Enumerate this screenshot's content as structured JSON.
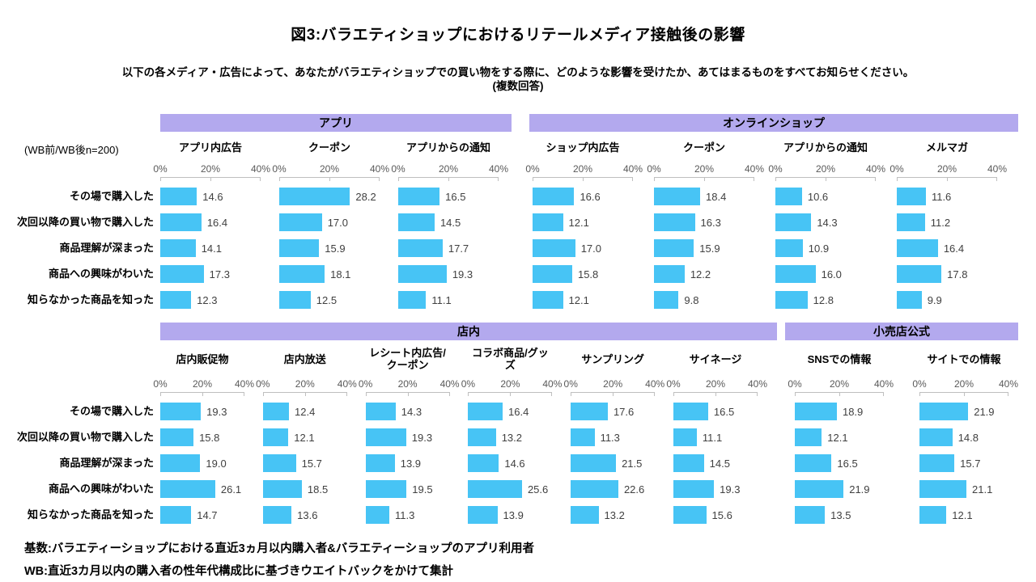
{
  "title": "図3:バラエティショップにおけるリテールメディア接触後の影響",
  "subtitle_line1": "以下の各メディア・広告によって、あなたがバラエティショップでの買い物をする際に、どのような影響を受けたか、あてはまるものをすべてお知らせください。",
  "subtitle_line2": "(複数回答)",
  "sample_note": "(WB前/WB後n=200)",
  "footnote_line1": "基数:バラエティーショップにおける直近3ヵ月以内購入者&バラエティーショップのアプリ利用者",
  "footnote_line2": "WB:直近3カ月以内の購入者の性年代構成比に基づきウエイトバックをかけて集計",
  "colors": {
    "bar": "#47C4F5",
    "band": "#B3A9EE",
    "axis": "#BFBFBF"
  },
  "chart_data": {
    "type": "bar",
    "orientation": "horizontal",
    "xlim": [
      0,
      40
    ],
    "axis_ticks": [
      "0%",
      "20%",
      "40%"
    ],
    "grid": false,
    "legend": "none",
    "categories": [
      "その場で購入した",
      "次回以降の買い物で購入した",
      "商品理解が深まった",
      "商品への興味がわいた",
      "知らなかった商品を知った"
    ],
    "sections": [
      {
        "groups": [
          {
            "band": "アプリ",
            "charts": [
              {
                "label": "アプリ内広告",
                "values": [
                  14.6,
                  16.4,
                  14.1,
                  17.3,
                  12.3
                ]
              },
              {
                "label": "クーポン",
                "values": [
                  28.2,
                  17.0,
                  15.9,
                  18.1,
                  12.5
                ]
              },
              {
                "label": "アプリからの通知",
                "values": [
                  16.5,
                  14.5,
                  17.7,
                  19.3,
                  11.1
                ]
              }
            ]
          },
          {
            "band": "オンラインショップ",
            "charts": [
              {
                "label": "ショップ内広告",
                "values": [
                  16.6,
                  12.1,
                  17.0,
                  15.8,
                  12.1
                ]
              },
              {
                "label": "クーポン",
                "values": [
                  18.4,
                  16.3,
                  15.9,
                  12.2,
                  9.8
                ]
              },
              {
                "label": "アプリからの通知",
                "values": [
                  10.6,
                  14.3,
                  10.9,
                  16.0,
                  12.8
                ]
              },
              {
                "label": "メルマガ",
                "values": [
                  11.6,
                  11.2,
                  16.4,
                  17.8,
                  9.9
                ]
              }
            ]
          }
        ]
      },
      {
        "groups": [
          {
            "band": "店内",
            "charts": [
              {
                "label": "店内販促物",
                "values": [
                  19.3,
                  15.8,
                  19.0,
                  26.1,
                  14.7
                ]
              },
              {
                "label": "店内放送",
                "values": [
                  12.4,
                  12.1,
                  15.7,
                  18.5,
                  13.6
                ]
              },
              {
                "label": "レシート内広告/クーポン",
                "values": [
                  14.3,
                  19.3,
                  13.9,
                  19.5,
                  11.3
                ]
              },
              {
                "label": "コラボ商品/グッズ",
                "values": [
                  16.4,
                  13.2,
                  14.6,
                  25.6,
                  13.9
                ]
              },
              {
                "label": "サンプリング",
                "values": [
                  17.6,
                  11.3,
                  21.5,
                  22.6,
                  13.2
                ]
              },
              {
                "label": "サイネージ",
                "values": [
                  16.5,
                  11.1,
                  14.5,
                  19.3,
                  15.6
                ]
              }
            ]
          },
          {
            "band": "小売店公式",
            "charts": [
              {
                "label": "SNSでの情報",
                "values": [
                  18.9,
                  12.1,
                  16.5,
                  21.9,
                  13.5
                ]
              },
              {
                "label": "サイトでの情報",
                "values": [
                  21.9,
                  14.8,
                  15.7,
                  21.1,
                  12.1
                ]
              }
            ]
          }
        ]
      }
    ]
  }
}
